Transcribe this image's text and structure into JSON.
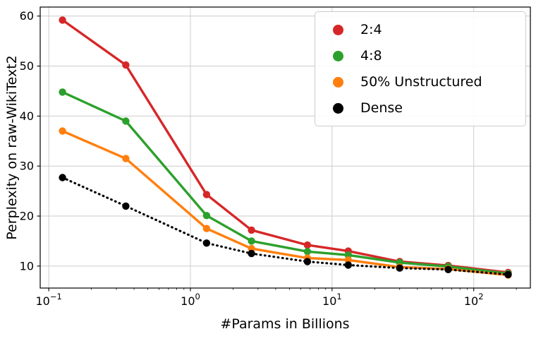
{
  "figure": {
    "background": "#ffffff",
    "grid_color": "#cccccc",
    "spine_color": "#000000"
  },
  "chart_data": {
    "type": "line",
    "title": "",
    "xlabel": "#Params in Billions",
    "ylabel": "Perplexity on raw-WikiText2",
    "x_scale": "log",
    "grid": true,
    "legend_position": "upper right",
    "x": [
      0.125,
      0.35,
      1.3,
      2.7,
      6.7,
      13,
      30,
      66,
      175
    ],
    "xlim": [
      0.087,
      251
    ],
    "ylim": [
      5.6,
      61.8
    ],
    "y_ticks": [
      10,
      20,
      30,
      40,
      50,
      60
    ],
    "x_ticks": [
      {
        "value": 0.1,
        "base": "10",
        "exponent": "−1"
      },
      {
        "value": 1,
        "base": "10",
        "exponent": "0"
      },
      {
        "value": 10,
        "base": "10",
        "exponent": "1"
      },
      {
        "value": 100,
        "base": "10",
        "exponent": "2"
      }
    ],
    "series": [
      {
        "name": "2:4",
        "color": "#d62728",
        "style": "solid",
        "values": [
          59.2,
          50.2,
          24.3,
          17.2,
          14.2,
          13.0,
          10.9,
          10.1,
          8.7
        ]
      },
      {
        "name": "4:8",
        "color": "#2ca02c",
        "style": "solid",
        "values": [
          44.8,
          39.0,
          20.1,
          15.0,
          12.9,
          12.2,
          10.7,
          9.9,
          8.5
        ]
      },
      {
        "name": "50% Unstructured",
        "color": "#ff7f0e",
        "style": "solid",
        "values": [
          37.0,
          31.5,
          17.5,
          13.5,
          11.6,
          11.2,
          9.8,
          9.4,
          8.2
        ]
      },
      {
        "name": "Dense",
        "color": "#000000",
        "style": "dotted",
        "values": [
          27.7,
          22.0,
          14.6,
          12.5,
          10.9,
          10.2,
          9.6,
          9.3,
          8.3
        ]
      }
    ]
  }
}
